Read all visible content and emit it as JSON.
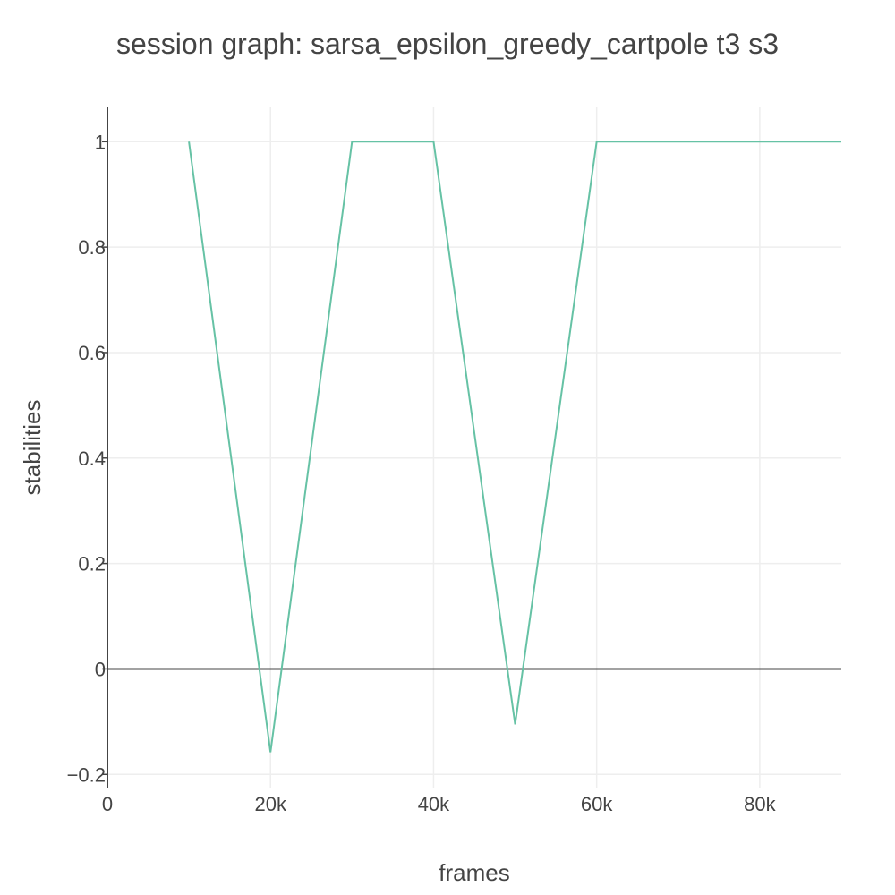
{
  "chart_data": {
    "type": "line",
    "title": "session graph: sarsa_epsilon_greedy_cartpole t3 s3",
    "xlabel": "frames",
    "ylabel": "stabilities",
    "xlim": [
      0,
      90000
    ],
    "ylim": [
      -0.225,
      1.065
    ],
    "x_ticks": [
      {
        "value": 0,
        "label": "0"
      },
      {
        "value": 20000,
        "label": "20k"
      },
      {
        "value": 40000,
        "label": "40k"
      },
      {
        "value": 60000,
        "label": "60k"
      },
      {
        "value": 80000,
        "label": "80k"
      }
    ],
    "y_ticks": [
      {
        "value": -0.2,
        "label": "−0.2"
      },
      {
        "value": 0,
        "label": "0"
      },
      {
        "value": 0.2,
        "label": "0.2"
      },
      {
        "value": 0.4,
        "label": "0.4"
      },
      {
        "value": 0.6,
        "label": "0.6"
      },
      {
        "value": 0.8,
        "label": "0.8"
      },
      {
        "value": 1,
        "label": "1"
      }
    ],
    "grid": true,
    "legend": "none",
    "series": [
      {
        "color": "#66c2a5",
        "x": [
          10000,
          20000,
          30000,
          40000,
          50000,
          60000,
          70000,
          80000,
          90000
        ],
        "y": [
          1,
          -0.158,
          1,
          1,
          -0.105,
          1,
          1,
          1,
          1
        ]
      }
    ]
  }
}
